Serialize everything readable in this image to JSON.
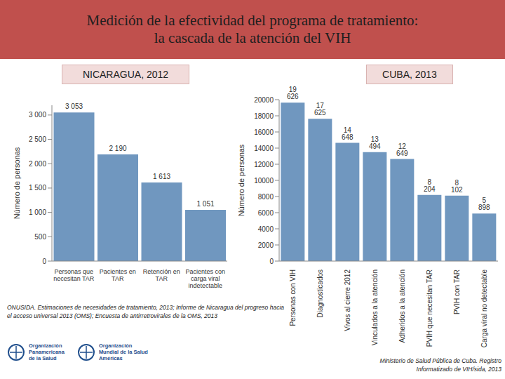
{
  "title": [
    "Medición de la efectividad del programa de tratamiento:",
    "la cascada de la atención del VIH"
  ],
  "chart_data": [
    {
      "type": "bar",
      "title": "NICARAGUA, 2012",
      "y_label": "Número de personas",
      "categories": [
        "Personas que necesitan TAR",
        "Pacientes en TAR",
        "Retención en TAR",
        "Pacientes con carga viral indetectable"
      ],
      "values": [
        3053,
        2190,
        1613,
        1051
      ],
      "value_labels": [
        "3 053",
        "2 190",
        "1 613",
        "1 051"
      ],
      "data_labels": true,
      "color": "#7097bf",
      "ylim": [
        0,
        3200
      ],
      "yticks": [
        0,
        500,
        {
          "value": 1000,
          "label": "1 000"
        },
        {
          "value": 1500,
          "label": "1 500"
        },
        {
          "value": 2000,
          "label": "2 000"
        },
        {
          "value": 2500,
          "label": "2 500"
        },
        {
          "value": 3000,
          "label": "3 000"
        }
      ],
      "grid": false
    },
    {
      "type": "bar",
      "title": "CUBA, 2013",
      "y_label": "Número de personas",
      "categories": [
        "Personas con VIH",
        "Diagnosticados",
        "Vivos al cierre 2012",
        "Vinculados a la atención",
        "Adheridos a la atención",
        "PVIH que necesitan TAR",
        "PVIH con TAR",
        "Carga viral no detectable"
      ],
      "values": [
        19626,
        17625,
        14648,
        13494,
        12649,
        8204,
        8102,
        5898
      ],
      "value_labels": [
        "19 626",
        "17 625",
        "14 648",
        "13 494",
        "12 649",
        "8 204",
        "8 102",
        "5 898"
      ],
      "data_labels": true,
      "color": "#7097bf",
      "ylim": [
        0,
        20000
      ],
      "yticks": [
        0,
        2000,
        4000,
        6000,
        8000,
        10000,
        12000,
        14000,
        16000,
        18000,
        20000
      ],
      "grid": false
    }
  ],
  "sources": [
    "ONUSIDA. Estimaciones de necesidades de tratamiento, 2013; Informe de Nicaragua del progreso hacia el acceso universal 2013 (OMS); Encuesta de antirretrovirales de la OMS, 2013",
    "Ministerio de Salud Pública de Cuba. Registro Informatizado de VIH/sida, 2013"
  ],
  "logos": [
    [
      "Organización",
      "Panamericana",
      "de la Salud"
    ],
    [
      "Organización",
      "Mundial de la Salud",
      "Américas"
    ]
  ]
}
